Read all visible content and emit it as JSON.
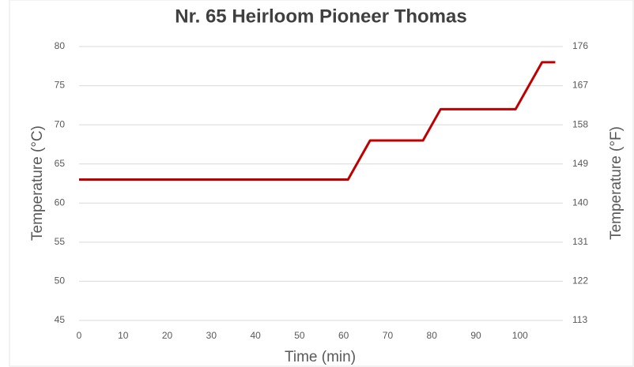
{
  "chart_data": {
    "type": "line",
    "title": "Nr. 65 Heirloom Pioneer Thomas",
    "xlabel": "Time (min)",
    "ylabel": "Temperature (°C)",
    "y2label": "Temperature (°F)",
    "x": [
      0,
      61,
      66,
      78,
      82,
      99,
      105,
      108
    ],
    "values": [
      63,
      63,
      68,
      68,
      72,
      72,
      78,
      78
    ],
    "color": "#c00000",
    "xlim": [
      0,
      109
    ],
    "xticks": [
      0,
      10,
      20,
      30,
      40,
      50,
      60,
      70,
      80,
      90,
      100
    ],
    "ylim": [
      45,
      80
    ],
    "yticks": [
      45,
      50,
      55,
      60,
      65,
      70,
      75,
      80
    ],
    "y2lim": [
      113,
      176
    ],
    "y2ticks": [
      113,
      122,
      131,
      140,
      149,
      158,
      167,
      176
    ],
    "grid": true
  }
}
